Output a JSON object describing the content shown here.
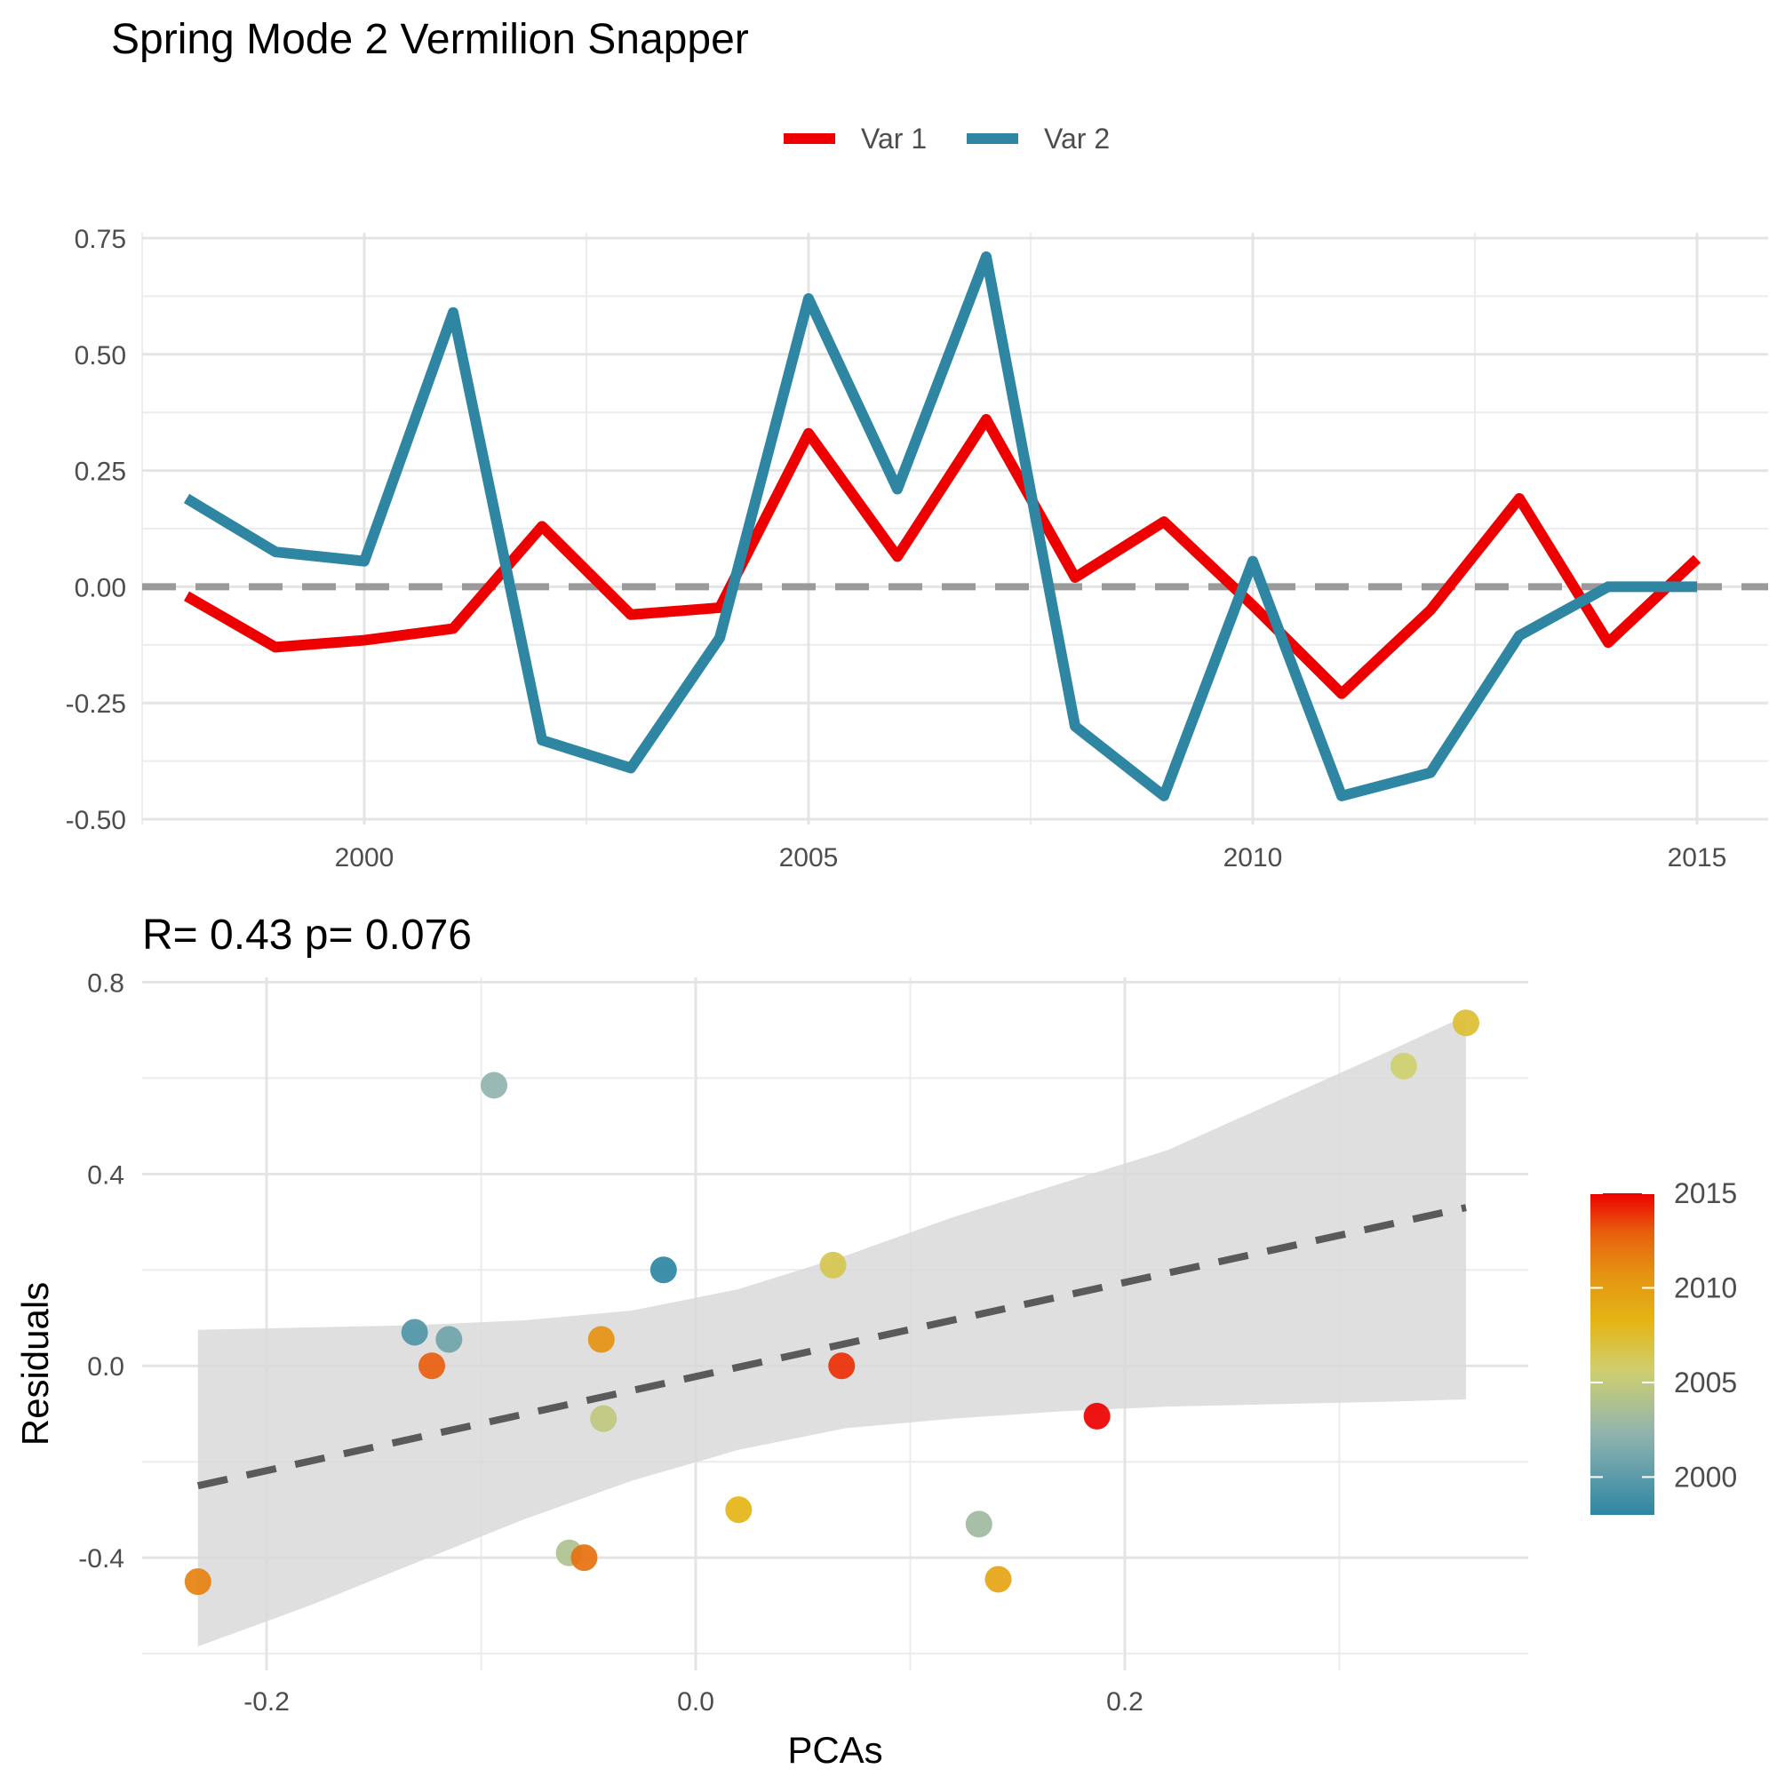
{
  "title": "Spring Mode 2 Vermilion Snapper",
  "legend": {
    "items": [
      {
        "label": "Var 1",
        "color": "#ee0000"
      },
      {
        "label": "Var 2",
        "color": "#2e86a3"
      }
    ]
  },
  "stat_label": "R= 0.43  p= 0.076",
  "colorbar": {
    "labels": [
      "2015",
      "2010",
      "2005",
      "2000"
    ],
    "values": [
      2015,
      2010,
      2005,
      2000
    ],
    "range": [
      1998,
      2015
    ]
  },
  "chart_data": [
    {
      "type": "line",
      "title": "Spring Mode 2 Vermilion Snapper",
      "xlabel": "",
      "ylabel": "",
      "x": [
        1998,
        1999,
        2000,
        2001,
        2002,
        2003,
        2004,
        2005,
        2006,
        2007,
        2008,
        2009,
        2010,
        2011,
        2012,
        2013,
        2014,
        2015
      ],
      "series": [
        {
          "name": "Var 1",
          "color": "#ee0000",
          "values": [
            -0.02,
            -0.13,
            -0.115,
            -0.09,
            0.13,
            -0.06,
            -0.045,
            0.33,
            0.065,
            0.36,
            0.02,
            0.14,
            -0.04,
            -0.23,
            -0.05,
            0.19,
            -0.12,
            0.06
          ]
        },
        {
          "name": "Var 2",
          "color": "#2e86a3",
          "values": [
            0.19,
            0.075,
            0.055,
            0.59,
            -0.33,
            -0.39,
            -0.11,
            0.62,
            0.21,
            0.71,
            -0.3,
            -0.45,
            0.055,
            -0.45,
            -0.4,
            -0.105,
            0.0,
            0.0
          ]
        }
      ],
      "xlim": [
        1997.5,
        2015.8
      ],
      "ylim": [
        -0.5,
        0.75
      ],
      "xticks": [
        2000,
        2005,
        2010,
        2015
      ],
      "xtick_labels": [
        "2000",
        "2005",
        "2010",
        "2015"
      ],
      "yticks": [
        -0.5,
        -0.25,
        0.0,
        0.25,
        0.5,
        0.75
      ],
      "ytick_labels": [
        "-0.50",
        "-0.25",
        "0.00",
        "0.25",
        "0.50",
        "0.75"
      ],
      "reference_line": 0,
      "grid": true,
      "legend_position": "top"
    },
    {
      "type": "scatter",
      "title": "R= 0.43  p= 0.076",
      "xlabel": "PCAs",
      "ylabel": "Residuals",
      "points": [
        {
          "x": -0.232,
          "y": -0.45,
          "year": 2011
        },
        {
          "x": -0.131,
          "y": 0.07,
          "year": 1999
        },
        {
          "x": -0.123,
          "y": 0.0,
          "year": 2013
        },
        {
          "x": -0.115,
          "y": 0.055,
          "year": 2000
        },
        {
          "x": -0.094,
          "y": 0.585,
          "year": 2001
        },
        {
          "x": -0.059,
          "y": -0.39,
          "year": 2003
        },
        {
          "x": -0.052,
          "y": -0.4,
          "year": 2012
        },
        {
          "x": -0.044,
          "y": 0.055,
          "year": 2010
        },
        {
          "x": -0.043,
          "y": -0.11,
          "year": 2004
        },
        {
          "x": -0.015,
          "y": 0.2,
          "year": 1998
        },
        {
          "x": 0.02,
          "y": -0.3,
          "year": 2008
        },
        {
          "x": 0.064,
          "y": 0.21,
          "year": 2006
        },
        {
          "x": 0.068,
          "y": 0.0,
          "year": 2014
        },
        {
          "x": 0.132,
          "y": -0.33,
          "year": 2002
        },
        {
          "x": 0.141,
          "y": -0.445,
          "year": 2009
        },
        {
          "x": 0.187,
          "y": -0.105,
          "year": 2015
        },
        {
          "x": 0.33,
          "y": 0.625,
          "year": 2005
        },
        {
          "x": 0.359,
          "y": 0.715,
          "year": 2007
        }
      ],
      "fit_line": {
        "x": [
          -0.232,
          0.359
        ],
        "y": [
          -0.25,
          0.33
        ]
      },
      "confidence_band": {
        "x": [
          -0.232,
          -0.18,
          -0.13,
          -0.08,
          -0.03,
          0.02,
          0.07,
          0.12,
          0.17,
          0.22,
          0.27,
          0.32,
          0.359
        ],
        "upper": [
          0.075,
          0.08,
          0.085,
          0.095,
          0.115,
          0.16,
          0.23,
          0.31,
          0.38,
          0.45,
          0.55,
          0.65,
          0.73
        ],
        "lower": [
          -0.585,
          -0.5,
          -0.41,
          -0.32,
          -0.24,
          -0.175,
          -0.13,
          -0.11,
          -0.095,
          -0.085,
          -0.08,
          -0.075,
          -0.07
        ]
      },
      "xlim": [
        -0.258,
        0.388
      ],
      "ylim": [
        -0.635,
        0.81
      ],
      "xticks": [
        -0.2,
        0.0,
        0.2
      ],
      "xtick_labels": [
        "-0.2",
        "0.0",
        "0.2"
      ],
      "yticks": [
        -0.4,
        0.0,
        0.4,
        0.8
      ],
      "ytick_labels": [
        "-0.4",
        "0.0",
        "0.4",
        "0.8"
      ],
      "grid": true,
      "legend_position": "right"
    }
  ]
}
